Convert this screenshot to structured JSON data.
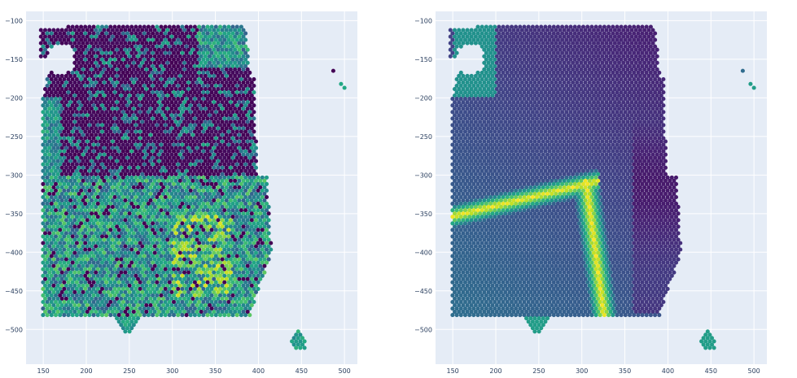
{
  "chart_data": [
    {
      "type": "scatter",
      "title": "",
      "xlabel": "",
      "ylabel": "",
      "xlim": [
        130,
        515
      ],
      "ylim": [
        -545,
        -88
      ],
      "xticks": [
        150,
        200,
        250,
        300,
        350,
        400,
        450,
        500
      ],
      "yticks": [
        -100,
        -150,
        -200,
        -250,
        -300,
        -350,
        -400,
        -450,
        -500
      ],
      "grid": true,
      "colorscale": "viridis",
      "spot_spacing": 4.9,
      "tissue_regions": [
        {
          "x": [
            145,
            500
          ],
          "y": [
            -110,
            -480
          ]
        },
        {
          "x": [
            235,
            262
          ],
          "y": [
            -480,
            -505
          ]
        },
        {
          "x": [
            430,
            455
          ],
          "y": [
            -490,
            -522
          ]
        }
      ],
      "pattern": "spatially scattered expression, low (purple) in upper region, mixed elsewhere"
    },
    {
      "type": "scatter",
      "title": "",
      "xlabel": "",
      "ylabel": "",
      "xlim": [
        130,
        515
      ],
      "ylim": [
        -545,
        -88
      ],
      "xticks": [
        150,
        200,
        250,
        300,
        350,
        400,
        450,
        500
      ],
      "yticks": [
        -100,
        -150,
        -200,
        -250,
        -300,
        -350,
        -400,
        -450,
        -500
      ],
      "grid": true,
      "colorscale": "viridis",
      "spot_spacing": 4.9,
      "tissue_regions": [
        {
          "x": [
            145,
            500
          ],
          "y": [
            -110,
            -480
          ]
        },
        {
          "x": [
            235,
            262
          ],
          "y": [
            -480,
            -505
          ]
        },
        {
          "x": [
            430,
            455
          ],
          "y": [
            -490,
            -522
          ]
        }
      ],
      "pattern": "smooth gradient with bright yellow band from (145,-355) arcing to (300,-310) then down to (305,-480)"
    }
  ],
  "colors": {
    "plot_bg": "#e5ecf6",
    "grid": "#ffffff",
    "tick_text": "#2a3f5f"
  }
}
